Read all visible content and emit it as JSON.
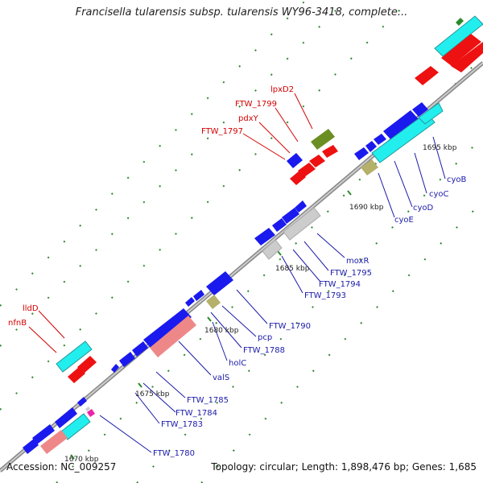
{
  "title": "Francisella tularensis subsp. tularensis WY96-3418, complete...",
  "footer": {
    "accession": "Accession: NC_009257",
    "summary": "Topology: circular; Length: 1,898,476 bp; Genes: 1,685"
  },
  "colors": {
    "cds_forward": "#1a1aee",
    "cds_reverse_red": "#ee1111",
    "cyan": "#22eeee",
    "olive": "#6b8e23",
    "tan": "#b5b06a",
    "pink": "#ee8888",
    "grey": "#cccccc",
    "magenta": "#ee22aa",
    "tick_green": "#2a8a2a",
    "backbone": "#888888",
    "label_red": "#d40000",
    "label_blue": "#1a1aaa"
  },
  "kbp_labels": [
    {
      "id": "k1670",
      "text": "1670 kbp"
    },
    {
      "id": "k1675",
      "text": "1675 kbp"
    },
    {
      "id": "k1680",
      "text": "1680 kbp"
    },
    {
      "id": "k1685",
      "text": "1685 kbp"
    },
    {
      "id": "k1690",
      "text": "1690 kbp"
    },
    {
      "id": "k1695",
      "text": "1695 kbp"
    }
  ],
  "gene_labels_red": [
    {
      "id": "lpxD2",
      "text": "lpxD2"
    },
    {
      "id": "ftw1799",
      "text": "FTW_1799"
    },
    {
      "id": "pdxY",
      "text": "pdxY"
    },
    {
      "id": "ftw1797",
      "text": "FTW_1797"
    },
    {
      "id": "lldD",
      "text": "lldD"
    },
    {
      "id": "nfnB",
      "text": "nfnB"
    }
  ],
  "gene_labels_blue": [
    {
      "id": "cyoB",
      "text": "cyoB"
    },
    {
      "id": "cyoC",
      "text": "cyoC"
    },
    {
      "id": "cyoD",
      "text": "cyoD"
    },
    {
      "id": "cyoE",
      "text": "cyoE"
    },
    {
      "id": "moxR",
      "text": "moxR"
    },
    {
      "id": "ftw1795",
      "text": "FTW_1795"
    },
    {
      "id": "ftw1794",
      "text": "FTW_1794"
    },
    {
      "id": "ftw1793",
      "text": "FTW_1793"
    },
    {
      "id": "ftw1790",
      "text": "FTW_1790"
    },
    {
      "id": "pcp",
      "text": "pcp"
    },
    {
      "id": "ftw1788",
      "text": "FTW_1788"
    },
    {
      "id": "holC",
      "text": "holC"
    },
    {
      "id": "valS",
      "text": "valS"
    },
    {
      "id": "ftw1785",
      "text": "FTW_1785"
    },
    {
      "id": "ftw1784",
      "text": "FTW_1784"
    },
    {
      "id": "ftw1783",
      "text": "FTW_1783"
    },
    {
      "id": "ftw1780",
      "text": "FTW_1780"
    }
  ]
}
